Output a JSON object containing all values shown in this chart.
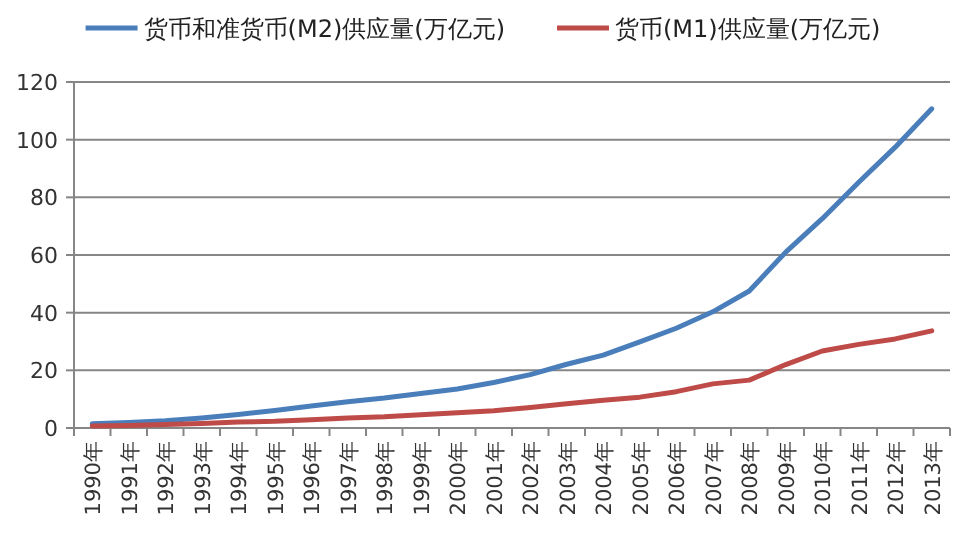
{
  "chart_data": {
    "type": "line",
    "categories": [
      "1990年",
      "1991年",
      "1992年",
      "1993年",
      "1994年",
      "1995年",
      "1996年",
      "1997年",
      "1998年",
      "1999年",
      "2000年",
      "2001年",
      "2002年",
      "2003年",
      "2004年",
      "2005年",
      "2006年",
      "2007年",
      "2008年",
      "2009年",
      "2010年",
      "2011年",
      "2012年",
      "2013年"
    ],
    "series": [
      {
        "name": "货币和准货币(M2)供应量(万亿元)",
        "color": "#4a7ebb",
        "values": [
          1.5,
          1.9,
          2.5,
          3.5,
          4.7,
          6.1,
          7.6,
          9.1,
          10.4,
          12.0,
          13.5,
          15.8,
          18.5,
          22.1,
          25.3,
          29.9,
          34.6,
          40.3,
          47.5,
          61.0,
          72.6,
          85.2,
          97.4,
          110.7
        ]
      },
      {
        "name": "货币(M1)供应量(万亿元)",
        "color": "#be4b48",
        "values": [
          0.7,
          0.9,
          1.2,
          1.6,
          2.1,
          2.3,
          2.9,
          3.5,
          3.9,
          4.6,
          5.3,
          6.0,
          7.1,
          8.4,
          9.6,
          10.7,
          12.6,
          15.3,
          16.6,
          22.0,
          26.7,
          29.0,
          30.9,
          33.7
        ]
      }
    ],
    "ylim": [
      0,
      120
    ],
    "yticks": [
      0,
      20,
      40,
      60,
      80,
      100,
      120
    ],
    "grid": "y",
    "legend": "top",
    "marker": "none",
    "line_style": "solid"
  }
}
